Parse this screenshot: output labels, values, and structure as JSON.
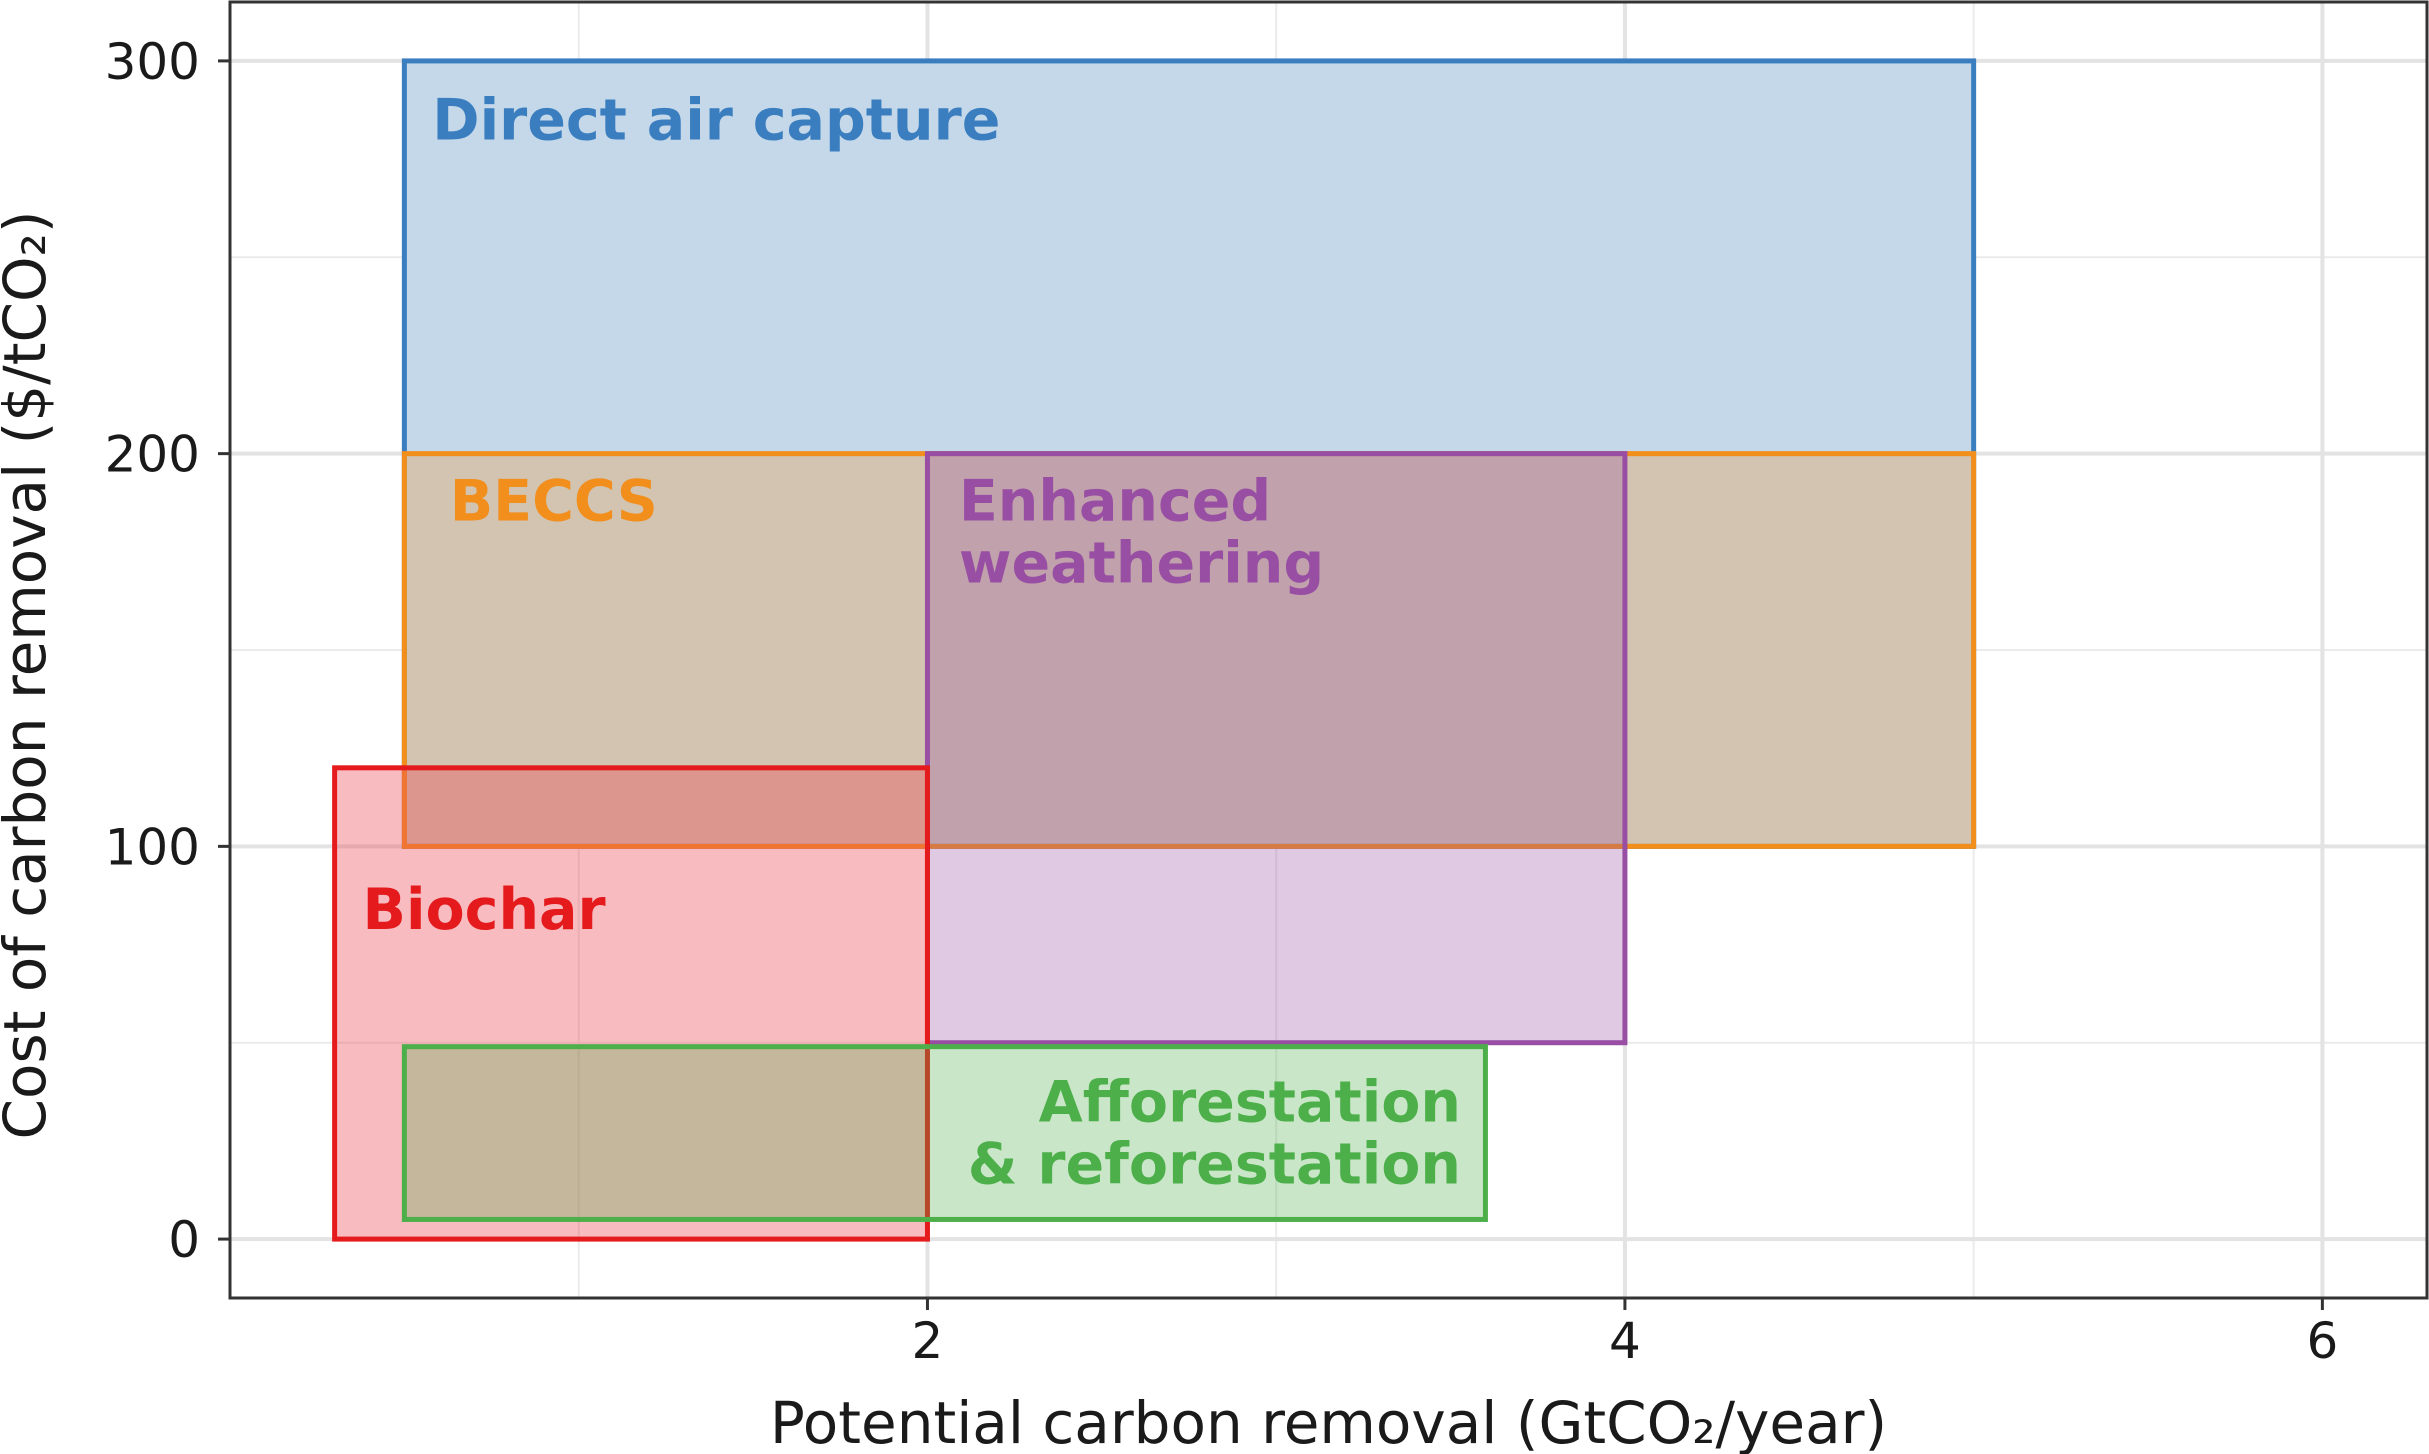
{
  "chart_data": {
    "type": "range-rectangles",
    "title": "",
    "xlabel": "Potential carbon removal (GtCO₂/year)",
    "ylabel": "Cost of carbon removal ($/tCO₂)",
    "xlim": [
      0,
      6.3
    ],
    "ylim": [
      -15,
      315
    ],
    "x_ticks": [
      2,
      4,
      6
    ],
    "y_ticks": [
      0,
      100,
      200,
      300
    ],
    "x_minor_grid": [
      1,
      3,
      5
    ],
    "y_minor_grid": [
      50,
      150,
      250
    ],
    "grid": true,
    "legend": "none",
    "series": [
      {
        "name": "Direct air capture",
        "label_lines": [
          "Direct air capture"
        ],
        "x_range": [
          0.5,
          5.0
        ],
        "y_range": [
          100,
          300
        ],
        "stroke": "#3a7ebf",
        "fill": "#c4d8ea",
        "fill_opacity": 1.0,
        "label_anchor": "start",
        "label_at": [
          0.58,
          280
        ]
      },
      {
        "name": "BECCS",
        "label_lines": [
          "BECCS"
        ],
        "x_range": [
          0.5,
          5.0
        ],
        "y_range": [
          100,
          200
        ],
        "stroke": "#f28e1c",
        "fill": "#f2962b",
        "fill_opacity": 0.3,
        "label_anchor": "start",
        "label_at": [
          0.63,
          183
        ]
      },
      {
        "name": "Enhanced weathering",
        "label_lines": [
          "Enhanced",
          "weathering"
        ],
        "x_range": [
          2.0,
          4.0
        ],
        "y_range": [
          50,
          200
        ],
        "stroke": "#984ea3",
        "fill": "#984ea3",
        "fill_opacity": 0.3,
        "label_anchor": "start",
        "label_at": [
          2.09,
          183
        ]
      },
      {
        "name": "Biochar",
        "label_lines": [
          "Biochar"
        ],
        "x_range": [
          0.3,
          2.0
        ],
        "y_range": [
          0,
          120
        ],
        "stroke": "#e41a1c",
        "fill": "#ec4d56",
        "fill_opacity": 0.38,
        "label_anchor": "start",
        "label_at": [
          0.38,
          79
        ]
      },
      {
        "name": "Afforestation & reforestation",
        "label_lines": [
          "Afforestation",
          "& reforestation"
        ],
        "x_range": [
          0.5,
          3.6
        ],
        "y_range": [
          5,
          49
        ],
        "stroke": "#4daf4a",
        "fill": "#4daf4a",
        "fill_opacity": 0.3,
        "label_anchor": "end",
        "label_at": [
          3.53,
          30
        ]
      }
    ]
  }
}
